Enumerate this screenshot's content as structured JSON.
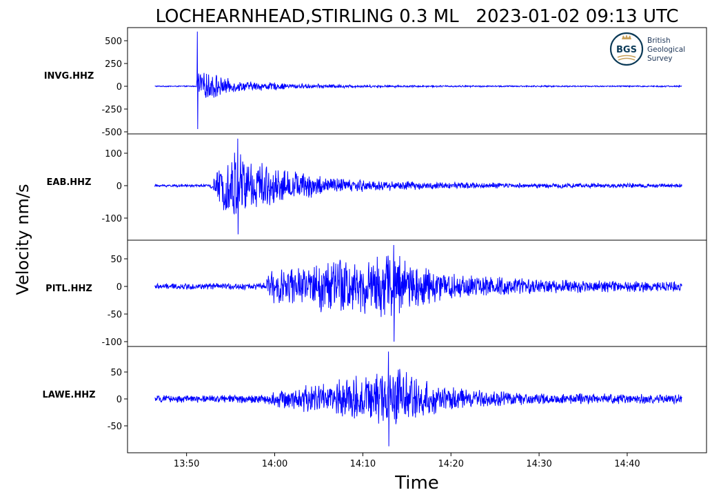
{
  "figure": {
    "title": "LOCHEARNHEAD,STIRLING 0.3 ML   2023-01-02 09:13 UTC",
    "ylabel": "Velocity nm/s",
    "xlabel": "Time"
  },
  "logo": {
    "mark": "BGS",
    "line1": "British",
    "line2": "Geological",
    "line3": "Survey"
  },
  "chart_data": {
    "type": "line",
    "title": "LOCHEARNHEAD,STIRLING 0.3 ML   2023-01-02 09:13 UTC",
    "xlabel": "Time",
    "ylabel": "Velocity nm/s",
    "x_ticks": [
      "13:50",
      "14:00",
      "14:10",
      "14:20",
      "14:30",
      "14:40"
    ],
    "x_range_minutes_after_13_00": [
      43.3,
      49.0
    ],
    "color": "#0000ff",
    "panels": [
      {
        "station": "INVG.HHZ",
        "y_ticks": [
          "500",
          "250",
          "0",
          "-250",
          "-500"
        ],
        "ylim": [
          -520,
          640
        ],
        "onset_min": 51.2,
        "peak_max": 600,
        "peak_min": -470,
        "envelope": [
          [
            46.4,
            6
          ],
          [
            51.1,
            6
          ],
          [
            51.3,
            250
          ],
          [
            52,
            130
          ],
          [
            53,
            160
          ],
          [
            54,
            90
          ],
          [
            56,
            55
          ],
          [
            60,
            40
          ],
          [
            62,
            28
          ],
          [
            66,
            22
          ],
          [
            70,
            14
          ],
          [
            76,
            10
          ],
          [
            86,
            8
          ],
          [
            106.2,
            8
          ]
        ]
      },
      {
        "station": "EAB.HHZ",
        "y_ticks": [
          "100",
          "0",
          "-100"
        ],
        "ylim": [
          -165,
          145
        ],
        "onset_min": 52.8,
        "peak_max": 145,
        "peak_min": -150,
        "envelope": [
          [
            46.4,
            4
          ],
          [
            52.5,
            4
          ],
          [
            53.3,
            35
          ],
          [
            54.5,
            80
          ],
          [
            55.6,
            110
          ],
          [
            57,
            95
          ],
          [
            59,
            60
          ],
          [
            62,
            45
          ],
          [
            66,
            28
          ],
          [
            70,
            18
          ],
          [
            76,
            12
          ],
          [
            86,
            8
          ],
          [
            106.2,
            6
          ]
        ]
      },
      {
        "station": "PITL.HHZ",
        "y_ticks": [
          "50",
          "0",
          "-50",
          "-100"
        ],
        "ylim": [
          -108,
          80
        ],
        "onset_min": 59.3,
        "peak_max": 75,
        "peak_min": -100,
        "envelope": [
          [
            46.4,
            5
          ],
          [
            59,
            6
          ],
          [
            59.4,
            35
          ],
          [
            61,
            30
          ],
          [
            64,
            35
          ],
          [
            66,
            55
          ],
          [
            69,
            50
          ],
          [
            72,
            55
          ],
          [
            74,
            60
          ],
          [
            76,
            42
          ],
          [
            79,
            28
          ],
          [
            83,
            18
          ],
          [
            90,
            12
          ],
          [
            100,
            10
          ],
          [
            106.2,
            9
          ]
        ]
      },
      {
        "station": "LAWE.HHZ",
        "y_ticks": [
          "50",
          "0",
          "-50"
        ],
        "ylim": [
          -98,
          90
        ],
        "onset_min": 59.6,
        "peak_max": 88,
        "peak_min": -88,
        "envelope": [
          [
            46.4,
            6
          ],
          [
            59,
            8
          ],
          [
            60,
            14
          ],
          [
            62,
            18
          ],
          [
            64,
            26
          ],
          [
            67,
            32
          ],
          [
            70,
            45
          ],
          [
            72,
            55
          ],
          [
            73.5,
            62
          ],
          [
            76,
            40
          ],
          [
            79,
            22
          ],
          [
            84,
            14
          ],
          [
            90,
            10
          ],
          [
            106.2,
            8
          ]
        ]
      }
    ]
  }
}
